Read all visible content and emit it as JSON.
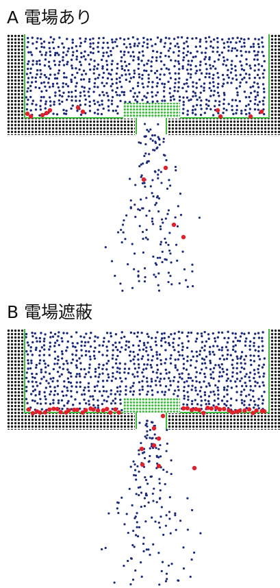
{
  "panels": [
    {
      "label": "A 電場あり"
    },
    {
      "label": "B 電場遮蔽"
    }
  ]
}
